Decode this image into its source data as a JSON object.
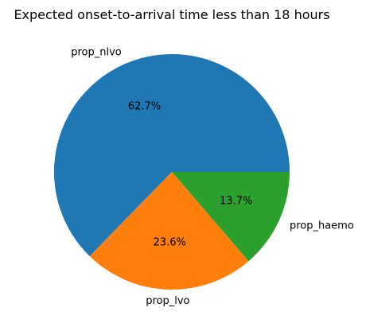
{
  "chart_data": {
    "type": "pie",
    "title": "Expected onset-to-arrival time less than 18 hours",
    "slices": [
      {
        "label": "prop_nlvo",
        "value": 62.7,
        "pct_label": "62.7%",
        "color": "#1f77b4"
      },
      {
        "label": "prop_lvo",
        "value": 23.6,
        "pct_label": "23.6%",
        "color": "#ff7f0e"
      },
      {
        "label": "prop_haemo",
        "value": 13.7,
        "pct_label": "13.7%",
        "color": "#2ca02c"
      }
    ],
    "start_angle_deg": 0,
    "direction": "counterclockwise",
    "legend": "none"
  }
}
